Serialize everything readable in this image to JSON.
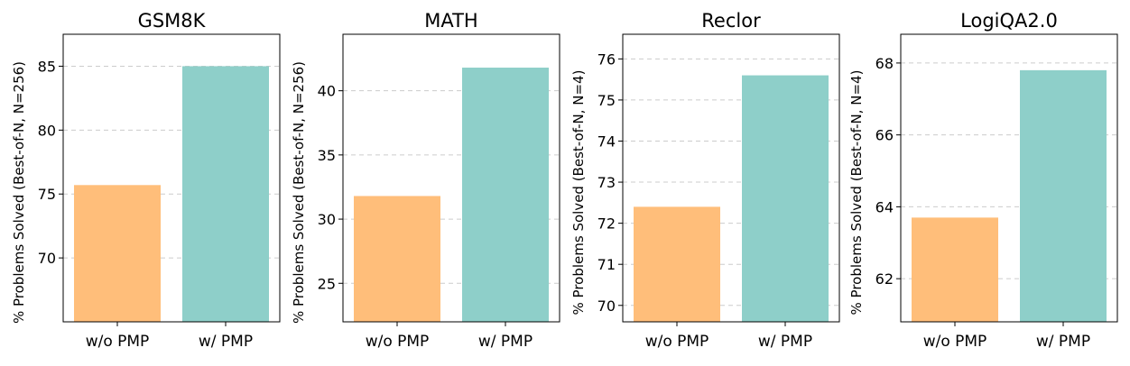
{
  "chart_data": [
    {
      "type": "bar",
      "title": "GSM8K",
      "ylabel": "% Problems Solved (Best-of-N, N=256)",
      "categories": [
        "w/o PMP",
        "w/ PMP"
      ],
      "values": [
        75.7,
        85.0
      ],
      "colors": [
        "#ffbe7a",
        "#8ecfc9"
      ],
      "ylim": [
        65,
        87.5
      ],
      "yticks": [
        70,
        75,
        80,
        85
      ],
      "ytick_labels": [
        "70",
        "75",
        "80",
        "85"
      ],
      "grid": true
    },
    {
      "type": "bar",
      "title": "MATH",
      "ylabel": "% Problems Solved (Best-of-N, N=256)",
      "categories": [
        "w/o PMP",
        "w/ PMP"
      ],
      "values": [
        31.8,
        41.8
      ],
      "colors": [
        "#ffbe7a",
        "#8ecfc9"
      ],
      "ylim": [
        22,
        44.4
      ],
      "yticks": [
        25,
        30,
        35,
        40
      ],
      "ytick_labels": [
        "25",
        "30",
        "35",
        "40"
      ],
      "grid": true
    },
    {
      "type": "bar",
      "title": "Reclor",
      "ylabel": "% Problems Solved (Best-of-N, N=4)",
      "categories": [
        "w/o PMP",
        "w/ PMP"
      ],
      "values": [
        72.4,
        75.6
      ],
      "colors": [
        "#ffbe7a",
        "#8ecfc9"
      ],
      "ylim": [
        69.6,
        76.6
      ],
      "yticks": [
        70,
        71,
        72,
        73,
        74,
        75,
        76
      ],
      "ytick_labels": [
        "70",
        "71",
        "72",
        "73",
        "74",
        "75",
        "76"
      ],
      "grid": true
    },
    {
      "type": "bar",
      "title": "LogiQA2.0",
      "ylabel": "% Problems Solved (Best-of-N, N=4)",
      "categories": [
        "w/o PMP",
        "w/ PMP"
      ],
      "values": [
        63.7,
        67.8
      ],
      "colors": [
        "#ffbe7a",
        "#8ecfc9"
      ],
      "ylim": [
        60.8,
        68.8
      ],
      "yticks": [
        62,
        64,
        66,
        68
      ],
      "ytick_labels": [
        "62",
        "64",
        "66",
        "68"
      ],
      "grid": true
    }
  ]
}
